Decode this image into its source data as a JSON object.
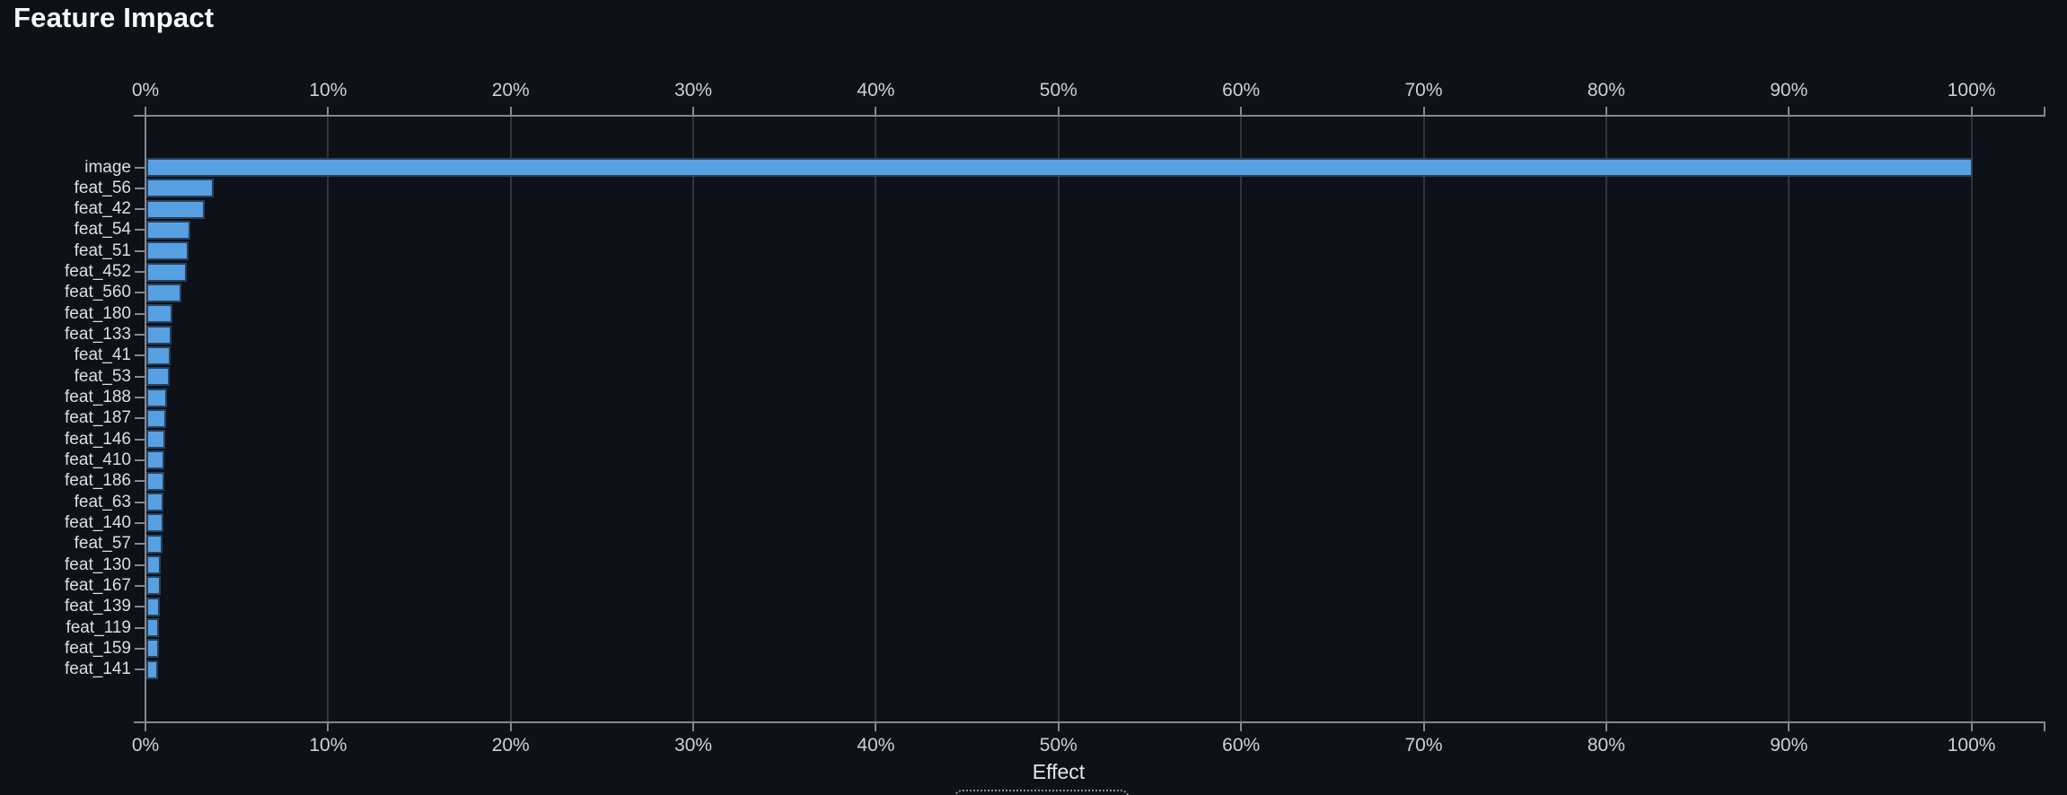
{
  "title": "Feature Impact",
  "x_axis": {
    "title": "Effect"
  },
  "colors": {
    "background": "#0E1117",
    "bar_fill": "#57A0E2",
    "bar_border": "#27415E",
    "axis_line": "#85888D",
    "grid_line": "#31363E",
    "title_text": "#FAFAFA",
    "tick_text": "#CDD1D6",
    "label_text": "#DCDFE3"
  },
  "chart_data": {
    "type": "bar",
    "orientation": "horizontal",
    "title": "Feature Impact",
    "xlabel": "Effect",
    "ylabel": "",
    "xlim": [
      0,
      104
    ],
    "grid": true,
    "legend": false,
    "x_ticks": [
      "0%",
      "10%",
      "20%",
      "30%",
      "40%",
      "50%",
      "60%",
      "70%",
      "80%",
      "90%",
      "100%"
    ],
    "x_tick_values": [
      0,
      10,
      20,
      30,
      40,
      50,
      60,
      70,
      80,
      90,
      100
    ],
    "value_unit": "%",
    "categories": [
      "image",
      "feat_56",
      "feat_42",
      "feat_54",
      "feat_51",
      "feat_452",
      "feat_560",
      "feat_180",
      "feat_133",
      "feat_41",
      "feat_53",
      "feat_188",
      "feat_187",
      "feat_146",
      "feat_410",
      "feat_186",
      "feat_63",
      "feat_140",
      "feat_57",
      "feat_130",
      "feat_167",
      "feat_139",
      "feat_119",
      "feat_159",
      "feat_141"
    ],
    "values": [
      100,
      3.7,
      3.2,
      2.4,
      2.3,
      2.2,
      1.9,
      1.45,
      1.4,
      1.35,
      1.3,
      1.15,
      1.1,
      1.03,
      0.97,
      0.96,
      0.95,
      0.93,
      0.9,
      0.8,
      0.77,
      0.75,
      0.7,
      0.68,
      0.64
    ]
  }
}
